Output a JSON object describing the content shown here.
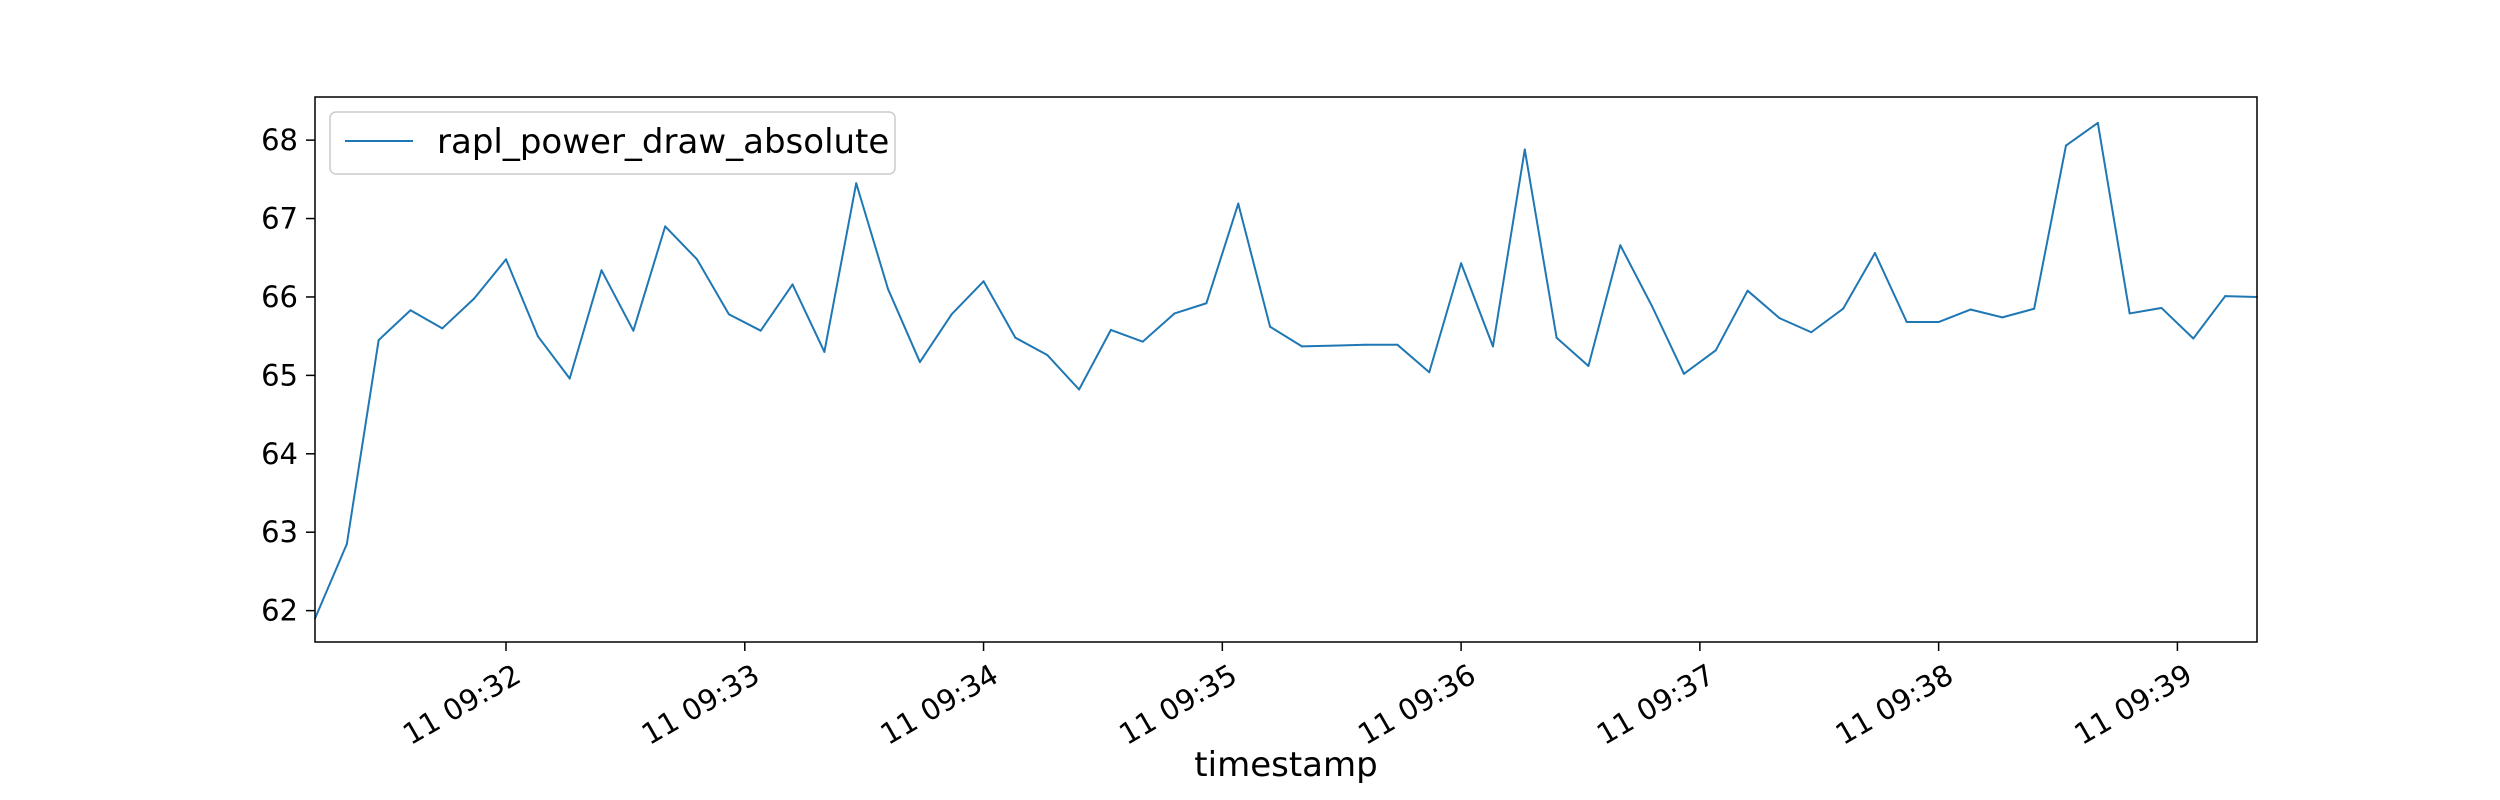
{
  "chart_data": {
    "type": "line",
    "xlabel": "timestamp",
    "ylabel": "",
    "ylim": [
      61.6,
      68.55
    ],
    "xlim": [
      "11 09:31:12",
      "11 09:39:20"
    ],
    "grid": false,
    "legend": {
      "placement": "upper-left",
      "entries": [
        "rapl_power_draw_absolute"
      ]
    },
    "x_ticks": [
      "11 09:32",
      "11 09:33",
      "11 09:34",
      "11 09:35",
      "11 09:36",
      "11 09:37",
      "11 09:38",
      "11 09:39"
    ],
    "y_ticks": [
      62,
      63,
      64,
      65,
      66,
      67,
      68
    ],
    "series": [
      {
        "name": "rapl_power_draw_absolute",
        "color": "#1f77b4",
        "x": [
          "11 09:31:12",
          "11 09:31:20",
          "11 09:31:28",
          "11 09:31:36",
          "11 09:31:44",
          "11 09:31:52",
          "11 09:32:00",
          "11 09:32:08",
          "11 09:32:16",
          "11 09:32:24",
          "11 09:32:32",
          "11 09:32:40",
          "11 09:32:48",
          "11 09:32:56",
          "11 09:33:04",
          "11 09:33:12",
          "11 09:33:20",
          "11 09:33:28",
          "11 09:33:36",
          "11 09:33:44",
          "11 09:33:52",
          "11 09:34:00",
          "11 09:34:08",
          "11 09:34:16",
          "11 09:34:24",
          "11 09:34:32",
          "11 09:34:40",
          "11 09:34:48",
          "11 09:34:56",
          "11 09:35:04",
          "11 09:35:12",
          "11 09:35:20",
          "11 09:35:28",
          "11 09:35:36",
          "11 09:35:44",
          "11 09:35:52",
          "11 09:36:00",
          "11 09:36:08",
          "11 09:36:16",
          "11 09:36:24",
          "11 09:36:32",
          "11 09:36:40",
          "11 09:36:48",
          "11 09:36:56",
          "11 09:37:04",
          "11 09:37:12",
          "11 09:37:20",
          "11 09:37:28",
          "11 09:37:36",
          "11 09:37:44",
          "11 09:37:52",
          "11 09:38:00",
          "11 09:38:08",
          "11 09:38:16",
          "11 09:38:24",
          "11 09:38:32",
          "11 09:38:40",
          "11 09:38:48",
          "11 09:38:56",
          "11 09:39:04",
          "11 09:39:12",
          "11 09:39:20"
        ],
        "values": [
          61.9,
          62.85,
          65.45,
          65.83,
          65.6,
          65.98,
          66.48,
          65.5,
          64.96,
          66.34,
          65.57,
          66.9,
          66.48,
          65.78,
          65.57,
          66.16,
          65.3,
          67.45,
          66.1,
          65.17,
          65.78,
          66.2,
          65.48,
          65.26,
          64.82,
          65.58,
          65.43,
          65.79,
          65.92,
          67.19,
          65.62,
          65.37,
          65.38,
          65.39,
          65.39,
          65.04,
          66.43,
          65.37,
          67.88,
          65.48,
          65.12,
          66.66,
          65.88,
          65.02,
          65.32,
          66.08,
          65.73,
          65.55,
          65.85,
          66.56,
          65.68,
          65.68,
          65.84,
          65.74,
          65.85,
          67.93,
          68.22,
          65.79,
          65.86,
          65.47,
          66.01,
          66.0
        ]
      }
    ]
  }
}
